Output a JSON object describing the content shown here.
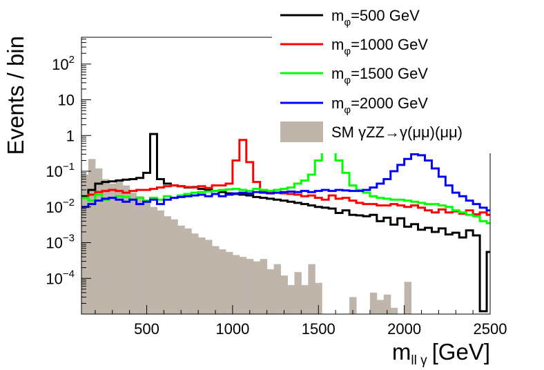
{
  "chart_data": {
    "type": "line",
    "title": "",
    "xlabel_main": "m",
    "xlabel_sub": "ll γ",
    "xlabel_unit": "[GeV]",
    "ylabel": "Events / bin",
    "xlim": [
      120,
      2500
    ],
    "ylim_log10": [
      -5.0,
      2.75
    ],
    "x_ticks": [
      {
        "value": 500,
        "label": "500"
      },
      {
        "value": 1000,
        "label": "1000"
      },
      {
        "value": 1500,
        "label": "1500"
      },
      {
        "value": 2000,
        "label": "2000"
      },
      {
        "value": 2500,
        "label": "2500"
      }
    ],
    "y_ticks": [
      {
        "exp": 2,
        "label": "10",
        "sup": "2"
      },
      {
        "exp": 1,
        "label": "10",
        "sup": ""
      },
      {
        "exp": 0,
        "label": "1",
        "sup": ""
      },
      {
        "exp": -1,
        "label": "10",
        "sup": "−1"
      },
      {
        "exp": -2,
        "label": "10",
        "sup": "−2"
      },
      {
        "exp": -3,
        "label": "10",
        "sup": "−3"
      },
      {
        "exp": -4,
        "label": "10",
        "sup": "−4"
      }
    ],
    "bin_start": 120,
    "bin_width": 40,
    "n_bins": 60,
    "legend": [
      {
        "series": 0,
        "label_main": "m",
        "label_sub": "φ",
        "label_tail": "=500 GeV"
      },
      {
        "series": 1,
        "label_main": "m",
        "label_sub": "φ",
        "label_tail": "=1000 GeV"
      },
      {
        "series": 2,
        "label_main": "m",
        "label_sub": "φ",
        "label_tail": "=1500 GeV"
      },
      {
        "series": 3,
        "label_main": "m",
        "label_sub": "φ",
        "label_tail": "=2000 GeV"
      },
      {
        "series": 4,
        "label_main": "SM γZZ→γ(μμ)(μμ)",
        "label_sub": "",
        "label_tail": ""
      }
    ],
    "series": [
      {
        "name": "m_phi=500 GeV",
        "color": "#000000",
        "style": "step",
        "values": [
          0.02,
          0.03,
          0.045,
          0.05,
          0.052,
          0.055,
          0.058,
          0.06,
          0.065,
          0.09,
          1.1,
          0.06,
          0.045,
          0.04,
          0.038,
          0.035,
          0.036,
          0.032,
          0.03,
          0.028,
          0.026,
          0.024,
          0.023,
          0.022,
          0.021,
          0.019,
          0.018,
          0.017,
          0.016,
          0.015,
          0.014,
          0.013,
          0.012,
          0.011,
          0.01,
          0.0095,
          0.009,
          0.0068,
          0.008,
          0.006,
          0.0058,
          0.0055,
          0.006,
          0.004,
          0.005,
          0.0032,
          0.0048,
          0.0028,
          0.0033,
          0.0023,
          0.0026,
          0.002,
          0.0025,
          0.0017,
          0.0019,
          0.0014,
          0.0022,
          0.0016,
          1.2e-05,
          0.00055
        ]
      },
      {
        "name": "m_phi=1000 GeV",
        "color": "#ff0000",
        "style": "step",
        "values": [
          0.018,
          0.022,
          0.026,
          0.028,
          0.03,
          0.028,
          0.025,
          0.028,
          0.03,
          0.03,
          0.032,
          0.035,
          0.038,
          0.04,
          0.038,
          0.036,
          0.035,
          0.038,
          0.034,
          0.04,
          0.04,
          0.045,
          0.2,
          0.75,
          0.18,
          0.05,
          0.028,
          0.026,
          0.025,
          0.024,
          0.023,
          0.022,
          0.02,
          0.021,
          0.018,
          0.016,
          0.021,
          0.017,
          0.018,
          0.015,
          0.013,
          0.012,
          0.012,
          0.011,
          0.011,
          0.012,
          0.011,
          0.01,
          0.011,
          0.0095,
          0.008,
          0.007,
          0.0085,
          0.007,
          0.0075,
          0.0065,
          0.008,
          0.0062,
          0.007,
          0.006
        ]
      },
      {
        "name": "m_phi=1500 GeV",
        "color": "#00ff00",
        "style": "step",
        "values": [
          0.018,
          0.015,
          0.022,
          0.016,
          0.018,
          0.02,
          0.019,
          0.016,
          0.018,
          0.015,
          0.018,
          0.016,
          0.02,
          0.018,
          0.021,
          0.023,
          0.025,
          0.026,
          0.027,
          0.028,
          0.03,
          0.031,
          0.032,
          0.03,
          0.028,
          0.032,
          0.03,
          0.028,
          0.03,
          0.032,
          0.035,
          0.045,
          0.055,
          0.08,
          0.2,
          0.38,
          0.43,
          0.2,
          0.09,
          0.04,
          0.03,
          0.025,
          0.02,
          0.018,
          0.017,
          0.016,
          0.016,
          0.015,
          0.014,
          0.013,
          0.012,
          0.012,
          0.011,
          0.01,
          0.008,
          0.007,
          0.006,
          0.0055,
          0.004,
          0.0035
        ]
      },
      {
        "name": "m_phi=2000 GeV",
        "color": "#0000ff",
        "style": "step",
        "values": [
          0.01,
          0.012,
          0.015,
          0.017,
          0.018,
          0.016,
          0.014,
          0.016,
          0.012,
          0.014,
          0.016,
          0.012,
          0.016,
          0.018,
          0.019,
          0.02,
          0.021,
          0.022,
          0.02,
          0.023,
          0.02,
          0.022,
          0.024,
          0.025,
          0.024,
          0.026,
          0.025,
          0.024,
          0.025,
          0.026,
          0.027,
          0.026,
          0.028,
          0.026,
          0.028,
          0.03,
          0.028,
          0.03,
          0.029,
          0.028,
          0.028,
          0.03,
          0.035,
          0.045,
          0.06,
          0.1,
          0.15,
          0.22,
          0.3,
          0.28,
          0.2,
          0.12,
          0.07,
          0.04,
          0.025,
          0.02,
          0.015,
          0.012,
          0.0095,
          0.008
        ]
      },
      {
        "name": "SM γZZ→γ(μμ)(μμ)",
        "color": "#bfb5ab",
        "style": "fill",
        "values": [
          0.08,
          0.22,
          0.12,
          0.06,
          0.045,
          0.06,
          0.04,
          0.025,
          0.02,
          0.014,
          0.01,
          0.008,
          0.0055,
          0.0045,
          0.003,
          0.0025,
          0.0018,
          0.0014,
          0.0012,
          0.0008,
          0.00065,
          0.00055,
          0.00045,
          0.0004,
          0.00035,
          0.0003,
          0.00035,
          0.00018,
          0.00025,
          0.00012,
          6.5e-05,
          0.00015,
          6.5e-05,
          0.00025,
          7.5e-05,
          0.0,
          0.0,
          0.0,
          0.0,
          3e-05,
          0.0,
          0.0,
          4e-05,
          2.5e-05,
          3.5e-05,
          1.5e-05,
          0.0,
          8e-05,
          0.0,
          0.0,
          0.0,
          0.0,
          0.0,
          0.0,
          0.0,
          0.0,
          0.0,
          0.0,
          0.0,
          0.0
        ]
      }
    ]
  }
}
